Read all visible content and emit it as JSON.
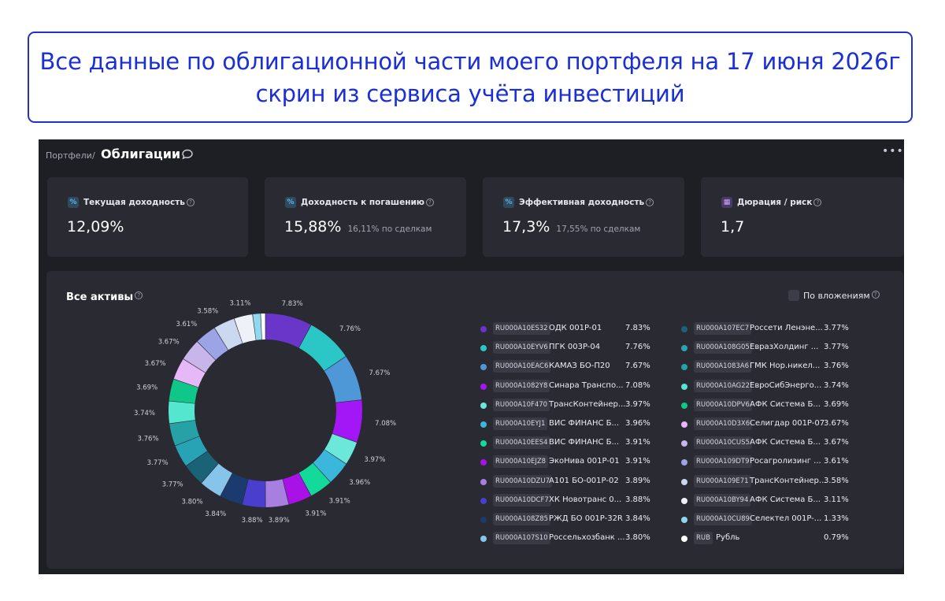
{
  "banner": {
    "line1": "Все данные по облигационной части моего портфеля на 17 июня 2026г",
    "line2": "скрин из сервиса учёта инвестиций"
  },
  "breadcrumb": {
    "parent": "Портфели",
    "separator": "/",
    "current": "Облигации"
  },
  "cards": [
    {
      "label": "Текущая доходность",
      "value": "12,09%",
      "sub": "",
      "icon": "percent-icon"
    },
    {
      "label": "Доходность к погашению",
      "value": "15,88%",
      "sub": "16,11% по сделкам",
      "icon": "percent-icon"
    },
    {
      "label": "Эффективная доходность",
      "value": "17,3%",
      "sub": "17,55% по сделкам",
      "icon": "percent-icon"
    },
    {
      "label": "Дюрация / риск",
      "value": "1,7",
      "sub": "",
      "icon": "calendar-icon"
    }
  ],
  "panel": {
    "title": "Все активы",
    "toggle_label": "По вложениям"
  },
  "assets": [
    {
      "isin": "RU000A10ES32",
      "name": "ОДК 001P-01",
      "pct": "7.83%",
      "value": 7.83,
      "color": "#6a35c9"
    },
    {
      "isin": "RU000A10EYV6",
      "name": "ПГК 003P-04",
      "pct": "7.76%",
      "value": 7.76,
      "color": "#2bc7c7"
    },
    {
      "isin": "RU000A10EAC6",
      "name": "КАМАЗ БО-П20",
      "pct": "7.67%",
      "value": 7.67,
      "color": "#4e98d8"
    },
    {
      "isin": "RU000A1082Y8",
      "name": "Синара Транспо...",
      "pct": "7.08%",
      "value": 7.08,
      "color": "#a316f5"
    },
    {
      "isin": "RU000A10F470",
      "name": "ТрансКонтейнер...",
      "pct": "3.97%",
      "value": 3.97,
      "color": "#6ce8da"
    },
    {
      "isin": "RU000A10EYJ1",
      "name": "ВИС ФИНАНС Б...",
      "pct": "3.96%",
      "value": 3.96,
      "color": "#3bb7dc"
    },
    {
      "isin": "RU000A10EES4",
      "name": "ВИС ФИНАНС Б...",
      "pct": "3.91%",
      "value": 3.91,
      "color": "#13d99b"
    },
    {
      "isin": "RU000A10EJZ8",
      "name": "ЭкоНива 001P-01",
      "pct": "3.91%",
      "value": 3.91,
      "color": "#a912e6"
    },
    {
      "isin": "RU000A10DZU7",
      "name": "А101 БО-001P-02",
      "pct": "3.89%",
      "value": 3.89,
      "color": "#a77fe0"
    },
    {
      "isin": "RU000A10DCF7",
      "name": "ХК Новотранс 0...",
      "pct": "3.88%",
      "value": 3.88,
      "color": "#4a3ecf"
    },
    {
      "isin": "RU000A108Z85",
      "name": "РЖД БО 001P-32R",
      "pct": "3.84%",
      "value": 3.84,
      "color": "#1b3a6e"
    },
    {
      "isin": "RU000A107S10",
      "name": "Россельхозбанк ...",
      "pct": "3.80%",
      "value": 3.8,
      "color": "#86c4ea"
    },
    {
      "isin": "RU000A107EC7",
      "name": "Россети Ленэне...",
      "pct": "3.77%",
      "value": 3.77,
      "color": "#1a6275"
    },
    {
      "isin": "RU000A108G05",
      "name": "ЕвразХолдинг ...",
      "pct": "3.77%",
      "value": 3.77,
      "color": "#28a2b5"
    },
    {
      "isin": "RU000A1083A6",
      "name": "ГМК Нор.никел...",
      "pct": "3.76%",
      "value": 3.76,
      "color": "#26a1a6"
    },
    {
      "isin": "RU000A10AG22",
      "name": "ЕвроСибЭнерго...",
      "pct": "3.74%",
      "value": 3.74,
      "color": "#55e6cf"
    },
    {
      "isin": "RU000A10DPV6",
      "name": "АФК Система Б...",
      "pct": "3.69%",
      "value": 3.69,
      "color": "#10c78a"
    },
    {
      "isin": "RU000A10D3X6",
      "name": "Селигдар 001P-07",
      "pct": "3.67%",
      "value": 3.67,
      "color": "#e6b8f7"
    },
    {
      "isin": "RU000A10CUS5",
      "name": "АФК Система Б...",
      "pct": "3.67%",
      "value": 3.67,
      "color": "#c8b6ea"
    },
    {
      "isin": "RU000A109DT9",
      "name": "Росагролизинг ...",
      "pct": "3.61%",
      "value": 3.61,
      "color": "#9da4e6"
    },
    {
      "isin": "RU000A109E71",
      "name": "ТрансКонтейнер...",
      "pct": "3.58%",
      "value": 3.58,
      "color": "#cad8f0"
    },
    {
      "isin": "RU000A10BY94",
      "name": "АФК Система Б...",
      "pct": "3.11%",
      "value": 3.11,
      "color": "#eef1f7"
    },
    {
      "isin": "RU000A10CU89",
      "name": "Селектел 001P-...",
      "pct": "1.33%",
      "value": 1.33,
      "color": "#8fd8ee"
    },
    {
      "isin": "RUB",
      "name": "Рубль",
      "pct": "0.79%",
      "value": 0.79,
      "color": "#ffffff"
    }
  ]
}
